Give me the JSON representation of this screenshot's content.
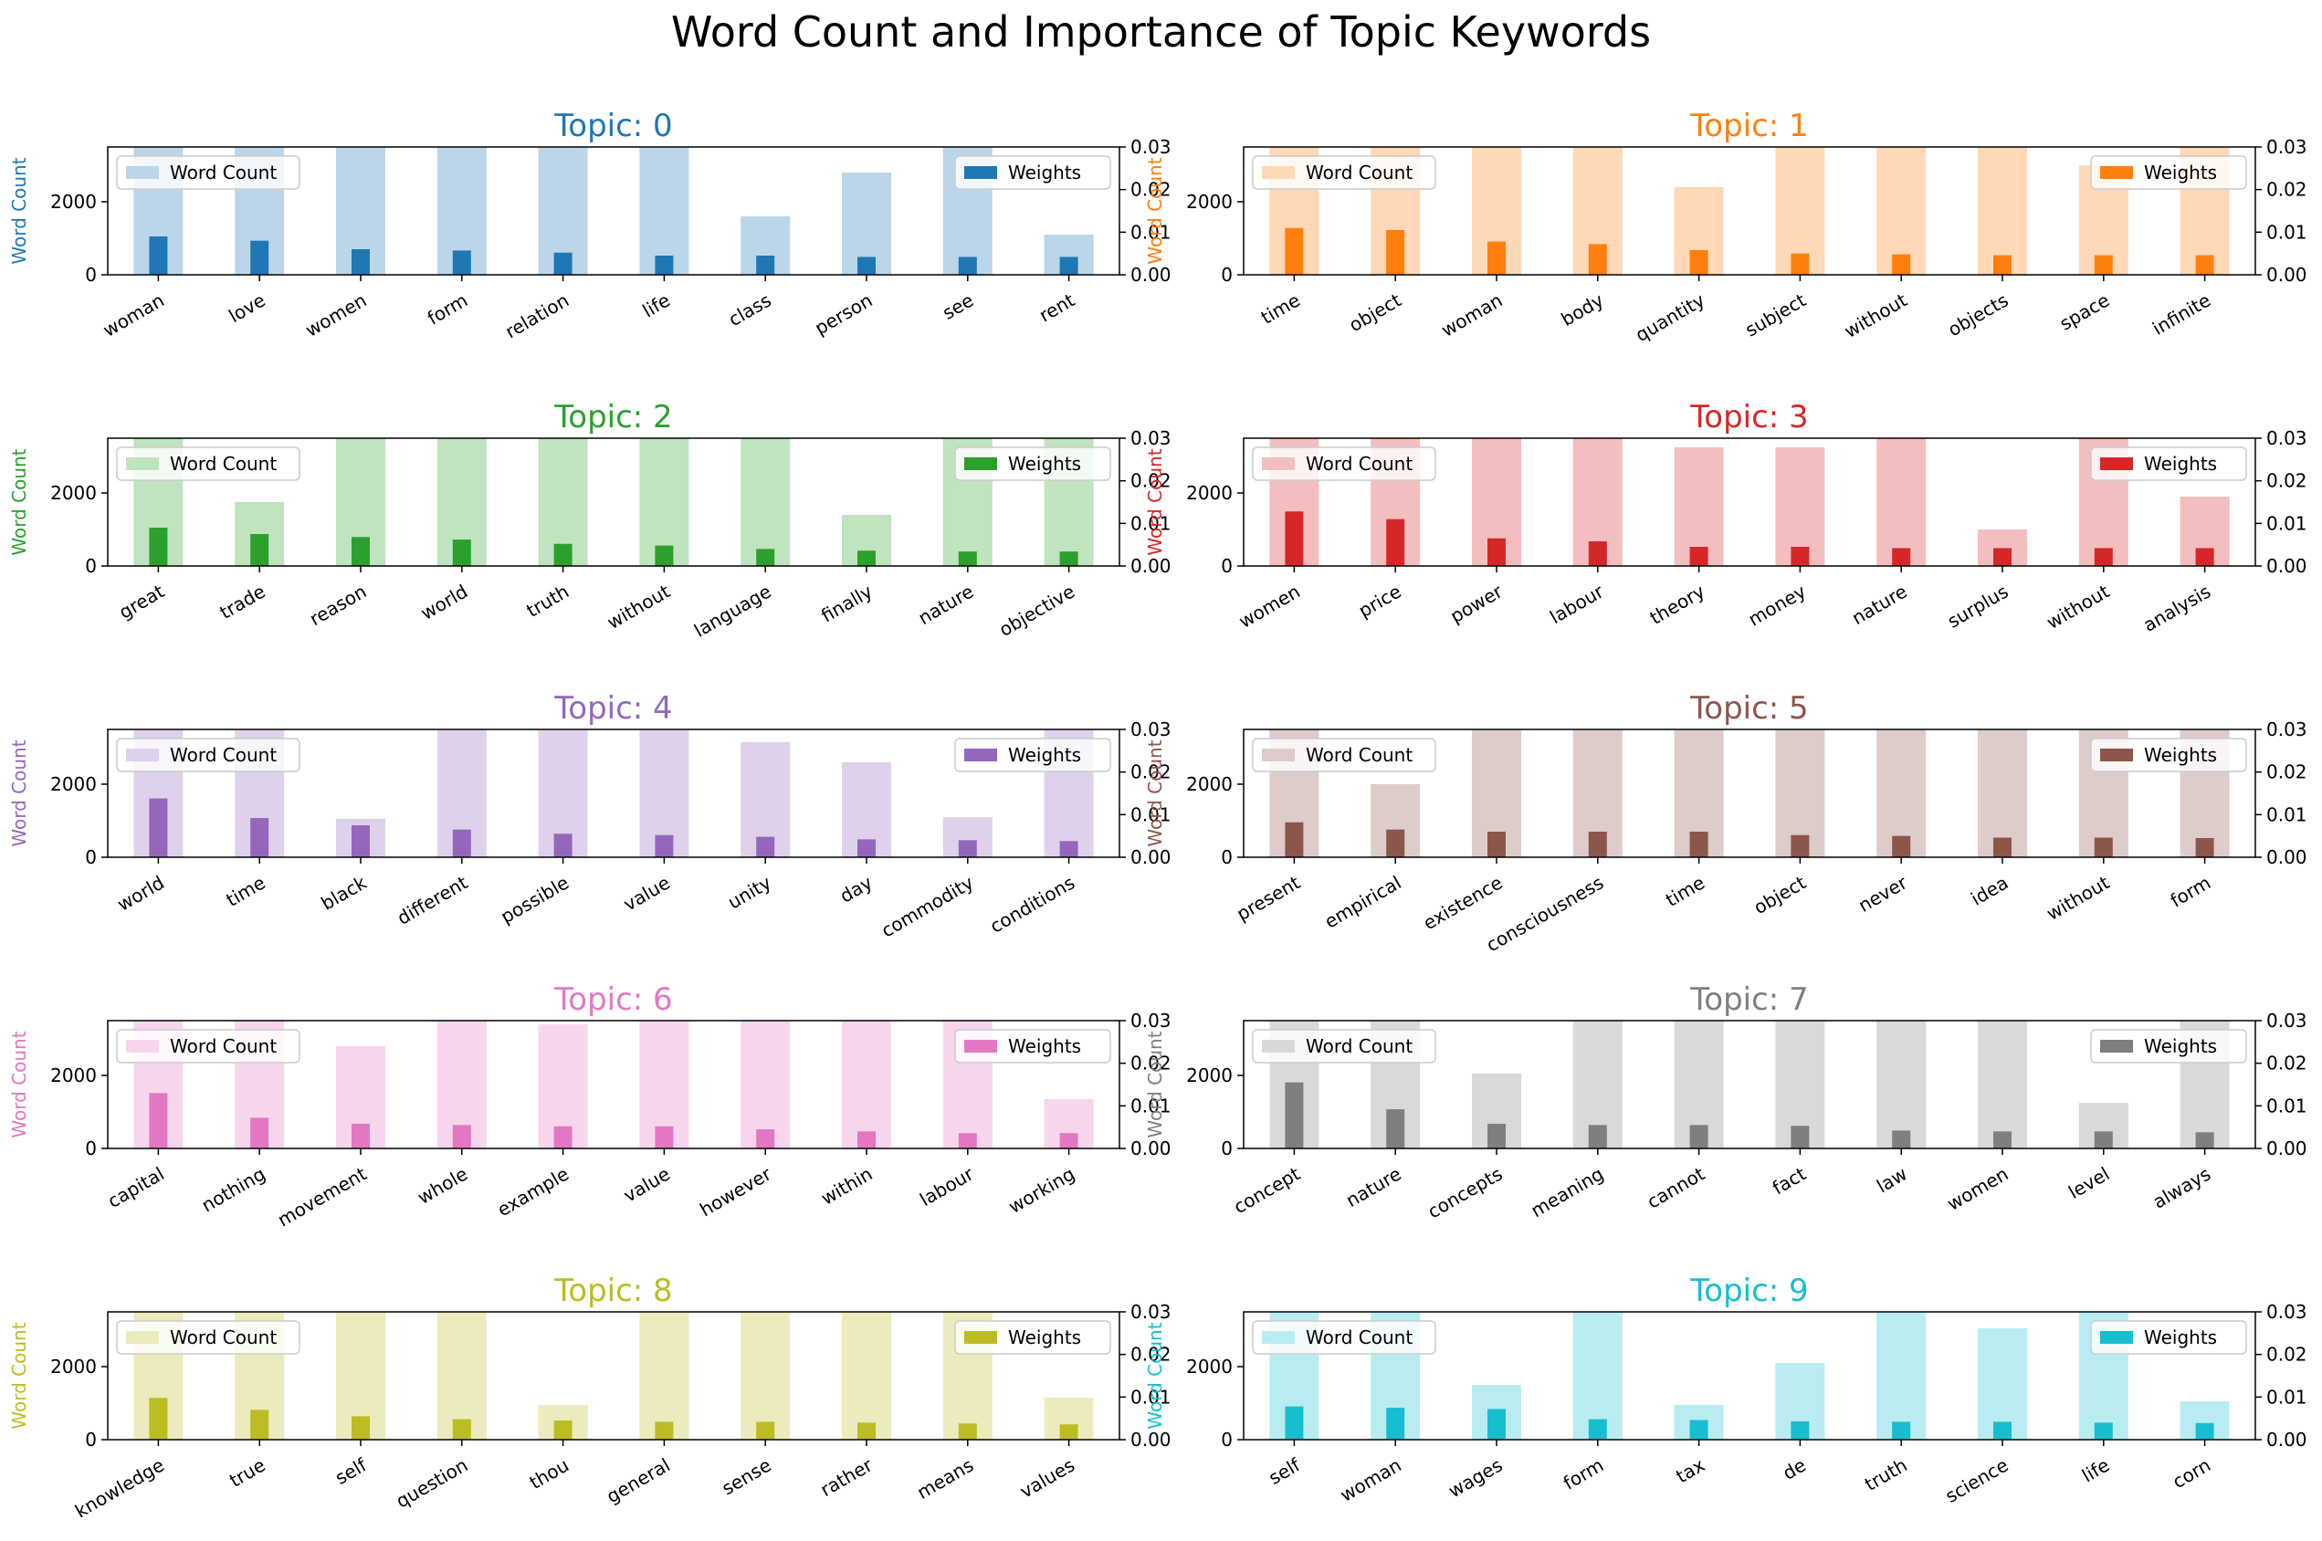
{
  "title": "Word Count and Importance of Topic Keywords",
  "legend": {
    "count_label": "Word Count",
    "weight_label": "Weights"
  },
  "axes": {
    "ylabel": "Word Count",
    "count_ylim": [
      0,
      3500
    ],
    "count_yticks": [
      0,
      2000
    ],
    "weight_ylim": [
      0,
      0.03
    ],
    "weight_yticks": [
      "0.00",
      "0.01",
      "0.02",
      "0.03"
    ]
  },
  "chart_data": [
    {
      "type": "bar",
      "title": "Topic: 0",
      "color": "#1f77b4",
      "categories": [
        "woman",
        "love",
        "women",
        "form",
        "relation",
        "life",
        "class",
        "person",
        "see",
        "rent"
      ],
      "series": [
        {
          "name": "Word Count",
          "values": [
            3500,
            3500,
            3500,
            3500,
            3500,
            3500,
            1600,
            2800,
            3500,
            1100
          ]
        },
        {
          "name": "Weights",
          "values": [
            0.009,
            0.008,
            0.006,
            0.0057,
            0.0052,
            0.0045,
            0.0045,
            0.0042,
            0.0042,
            0.0042
          ]
        }
      ]
    },
    {
      "type": "bar",
      "title": "Topic: 1",
      "color": "#ff7f0e",
      "categories": [
        "time",
        "object",
        "woman",
        "body",
        "quantity",
        "subject",
        "without",
        "objects",
        "space",
        "infinite"
      ],
      "series": [
        {
          "name": "Word Count",
          "values": [
            3500,
            3500,
            3500,
            3500,
            2400,
            3500,
            3500,
            3500,
            3000,
            3500
          ]
        },
        {
          "name": "Weights",
          "values": [
            0.011,
            0.0105,
            0.0078,
            0.0072,
            0.0058,
            0.005,
            0.0048,
            0.0046,
            0.0046,
            0.0046
          ]
        }
      ]
    },
    {
      "type": "bar",
      "title": "Topic: 2",
      "color": "#2ca02c",
      "categories": [
        "great",
        "trade",
        "reason",
        "world",
        "truth",
        "without",
        "language",
        "finally",
        "nature",
        "objective"
      ],
      "series": [
        {
          "name": "Word Count",
          "values": [
            3500,
            1750,
            3500,
            3500,
            3500,
            3500,
            3500,
            1400,
            3500,
            3500
          ]
        },
        {
          "name": "Weights",
          "values": [
            0.009,
            0.0075,
            0.0068,
            0.0062,
            0.0052,
            0.0048,
            0.004,
            0.0036,
            0.0034,
            0.0034
          ]
        }
      ]
    },
    {
      "type": "bar",
      "title": "Topic: 3",
      "color": "#d62728",
      "categories": [
        "women",
        "price",
        "power",
        "labour",
        "theory",
        "money",
        "nature",
        "surplus",
        "without",
        "analysis"
      ],
      "series": [
        {
          "name": "Word Count",
          "values": [
            3500,
            3500,
            3500,
            3500,
            3250,
            3250,
            3500,
            1000,
            3500,
            1900
          ]
        },
        {
          "name": "Weights",
          "values": [
            0.0128,
            0.011,
            0.0065,
            0.0058,
            0.0045,
            0.0045,
            0.0042,
            0.0042,
            0.0042,
            0.0042
          ]
        }
      ]
    },
    {
      "type": "bar",
      "title": "Topic: 4",
      "color": "#9467bd",
      "categories": [
        "world",
        "time",
        "black",
        "different",
        "possible",
        "value",
        "unity",
        "day",
        "commodity",
        "conditions"
      ],
      "series": [
        {
          "name": "Word Count",
          "values": [
            3500,
            3500,
            1050,
            3500,
            3500,
            3500,
            3150,
            2600,
            1100,
            3500
          ]
        },
        {
          "name": "Weights",
          "values": [
            0.0138,
            0.0092,
            0.0075,
            0.0065,
            0.0055,
            0.0052,
            0.0048,
            0.0042,
            0.004,
            0.0038
          ]
        }
      ]
    },
    {
      "type": "bar",
      "title": "Topic: 5",
      "color": "#8c564b",
      "categories": [
        "present",
        "empirical",
        "existence",
        "consciousness",
        "time",
        "object",
        "never",
        "idea",
        "without",
        "form"
      ],
      "series": [
        {
          "name": "Word Count",
          "values": [
            3500,
            2000,
            3500,
            3500,
            3500,
            3500,
            3500,
            3500,
            3500,
            3500
          ]
        },
        {
          "name": "Weights",
          "values": [
            0.0082,
            0.0065,
            0.006,
            0.006,
            0.006,
            0.0052,
            0.005,
            0.0046,
            0.0046,
            0.0045
          ]
        }
      ]
    },
    {
      "type": "bar",
      "title": "Topic: 6",
      "color": "#e377c2",
      "categories": [
        "capital",
        "nothing",
        "movement",
        "whole",
        "example",
        "value",
        "however",
        "within",
        "labour",
        "working"
      ],
      "series": [
        {
          "name": "Word Count",
          "values": [
            3500,
            3500,
            2800,
            3500,
            3400,
            3500,
            3500,
            3500,
            3500,
            1350
          ]
        },
        {
          "name": "Weights",
          "values": [
            0.013,
            0.0072,
            0.0058,
            0.0055,
            0.0052,
            0.0052,
            0.0045,
            0.004,
            0.0036,
            0.0036
          ]
        }
      ]
    },
    {
      "type": "bar",
      "title": "Topic: 7",
      "color": "#7f7f7f",
      "categories": [
        "concept",
        "nature",
        "concepts",
        "meaning",
        "cannot",
        "fact",
        "law",
        "women",
        "level",
        "always"
      ],
      "series": [
        {
          "name": "Word Count",
          "values": [
            3500,
            3500,
            2050,
            3500,
            3500,
            3500,
            3500,
            3500,
            1250,
            3500
          ]
        },
        {
          "name": "Weights",
          "values": [
            0.0155,
            0.0092,
            0.0058,
            0.0055,
            0.0055,
            0.0053,
            0.0042,
            0.004,
            0.004,
            0.0038
          ]
        }
      ]
    },
    {
      "type": "bar",
      "title": "Topic: 8",
      "color": "#bcbd22",
      "categories": [
        "knowledge",
        "true",
        "self",
        "question",
        "thou",
        "general",
        "sense",
        "rather",
        "means",
        "values"
      ],
      "series": [
        {
          "name": "Word Count",
          "values": [
            3500,
            3500,
            3500,
            3500,
            950,
            3500,
            3500,
            3500,
            3500,
            1150
          ]
        },
        {
          "name": "Weights",
          "values": [
            0.0098,
            0.007,
            0.0055,
            0.0048,
            0.0045,
            0.0042,
            0.0042,
            0.004,
            0.0038,
            0.0036
          ]
        }
      ]
    },
    {
      "type": "bar",
      "title": "Topic: 9",
      "color": "#17becf",
      "categories": [
        "self",
        "woman",
        "wages",
        "form",
        "tax",
        "de",
        "truth",
        "science",
        "life",
        "corn"
      ],
      "series": [
        {
          "name": "Word Count",
          "values": [
            3500,
            3500,
            1500,
            3500,
            950,
            2100,
            3500,
            3050,
            3500,
            1050
          ]
        },
        {
          "name": "Weights",
          "values": [
            0.0078,
            0.0075,
            0.0072,
            0.0048,
            0.0046,
            0.0043,
            0.0042,
            0.0042,
            0.004,
            0.0039
          ]
        }
      ]
    }
  ]
}
